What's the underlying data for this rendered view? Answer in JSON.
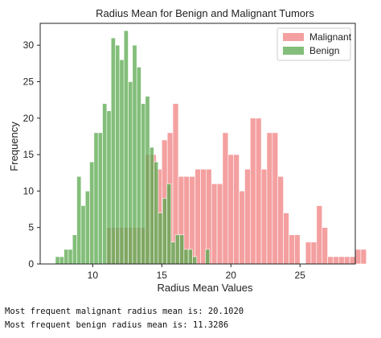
{
  "chart_data": {
    "type": "histogram",
    "title": "Radius Mean for Benign and Malignant Tumors",
    "xlabel": "Radius Mean Values",
    "ylabel": "Frequency",
    "xlim": [
      6.2,
      29.0
    ],
    "ylim": [
      0,
      33
    ],
    "xticks": [
      10,
      15,
      20,
      25
    ],
    "yticks": [
      0,
      5,
      10,
      15,
      20,
      25,
      30
    ],
    "grid": false,
    "legend_position": "top-right",
    "series": [
      {
        "name": "Malignant",
        "color": "#f08080",
        "opacity": 0.75,
        "bin_start": 11.0,
        "bin_width": 0.4,
        "values": [
          5,
          5,
          5,
          5,
          5,
          5,
          5,
          15,
          15,
          13,
          17,
          18,
          22,
          12,
          12,
          12,
          13,
          13,
          13,
          11,
          11,
          18,
          15,
          15,
          10,
          13,
          20,
          20,
          13,
          18,
          18,
          12,
          7,
          4,
          4,
          0,
          3,
          3,
          8,
          5,
          1,
          1,
          1,
          1,
          1,
          2,
          2,
          0,
          0,
          0,
          2,
          1
        ]
      },
      {
        "name": "Benign",
        "color": "#5aa84d",
        "opacity": 0.75,
        "bin_start": 7.3,
        "bin_width": 0.31,
        "values": [
          1,
          1,
          2,
          2,
          4,
          12,
          8,
          10,
          14,
          18,
          18,
          22,
          21,
          31,
          30,
          28,
          32,
          25,
          30,
          27,
          22,
          23,
          16,
          14,
          7,
          9,
          11,
          3,
          4,
          4,
          2,
          2,
          1,
          0,
          0,
          2
        ]
      }
    ],
    "legend": [
      "Malignant",
      "Benign"
    ]
  },
  "output": {
    "line1": "Most frequent malignant radius mean is: 20.1020",
    "line2": "Most frequent benign radius mean is: 11.3286"
  }
}
